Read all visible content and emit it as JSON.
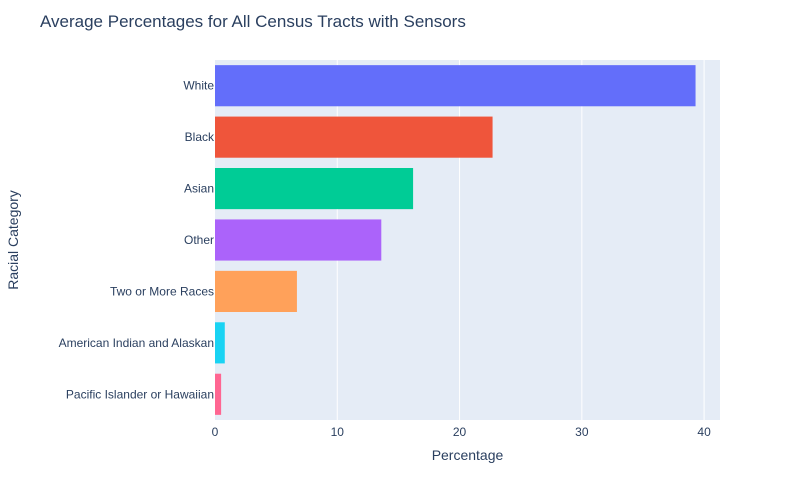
{
  "chart_data": {
    "type": "bar",
    "orientation": "horizontal",
    "title": "Average Percentages for All Census Tracts with Sensors",
    "xlabel": "Percentage",
    "ylabel": "Racial Category",
    "categories": [
      "White",
      "Black",
      "Asian",
      "Other",
      "Two or More Races",
      "American Indian and Alaskan",
      "Pacific Islander or Hawaiian"
    ],
    "values": [
      39.3,
      22.7,
      16.2,
      13.6,
      6.7,
      0.8,
      0.5
    ],
    "colors": [
      "#636efa",
      "#ef553b",
      "#00cc96",
      "#ab63fa",
      "#ffa15a",
      "#19d3f3",
      "#ff6692"
    ],
    "xlim": [
      0,
      41.3
    ],
    "xticks": [
      0,
      10,
      20,
      30,
      40
    ],
    "grid": true,
    "legend": "none"
  }
}
